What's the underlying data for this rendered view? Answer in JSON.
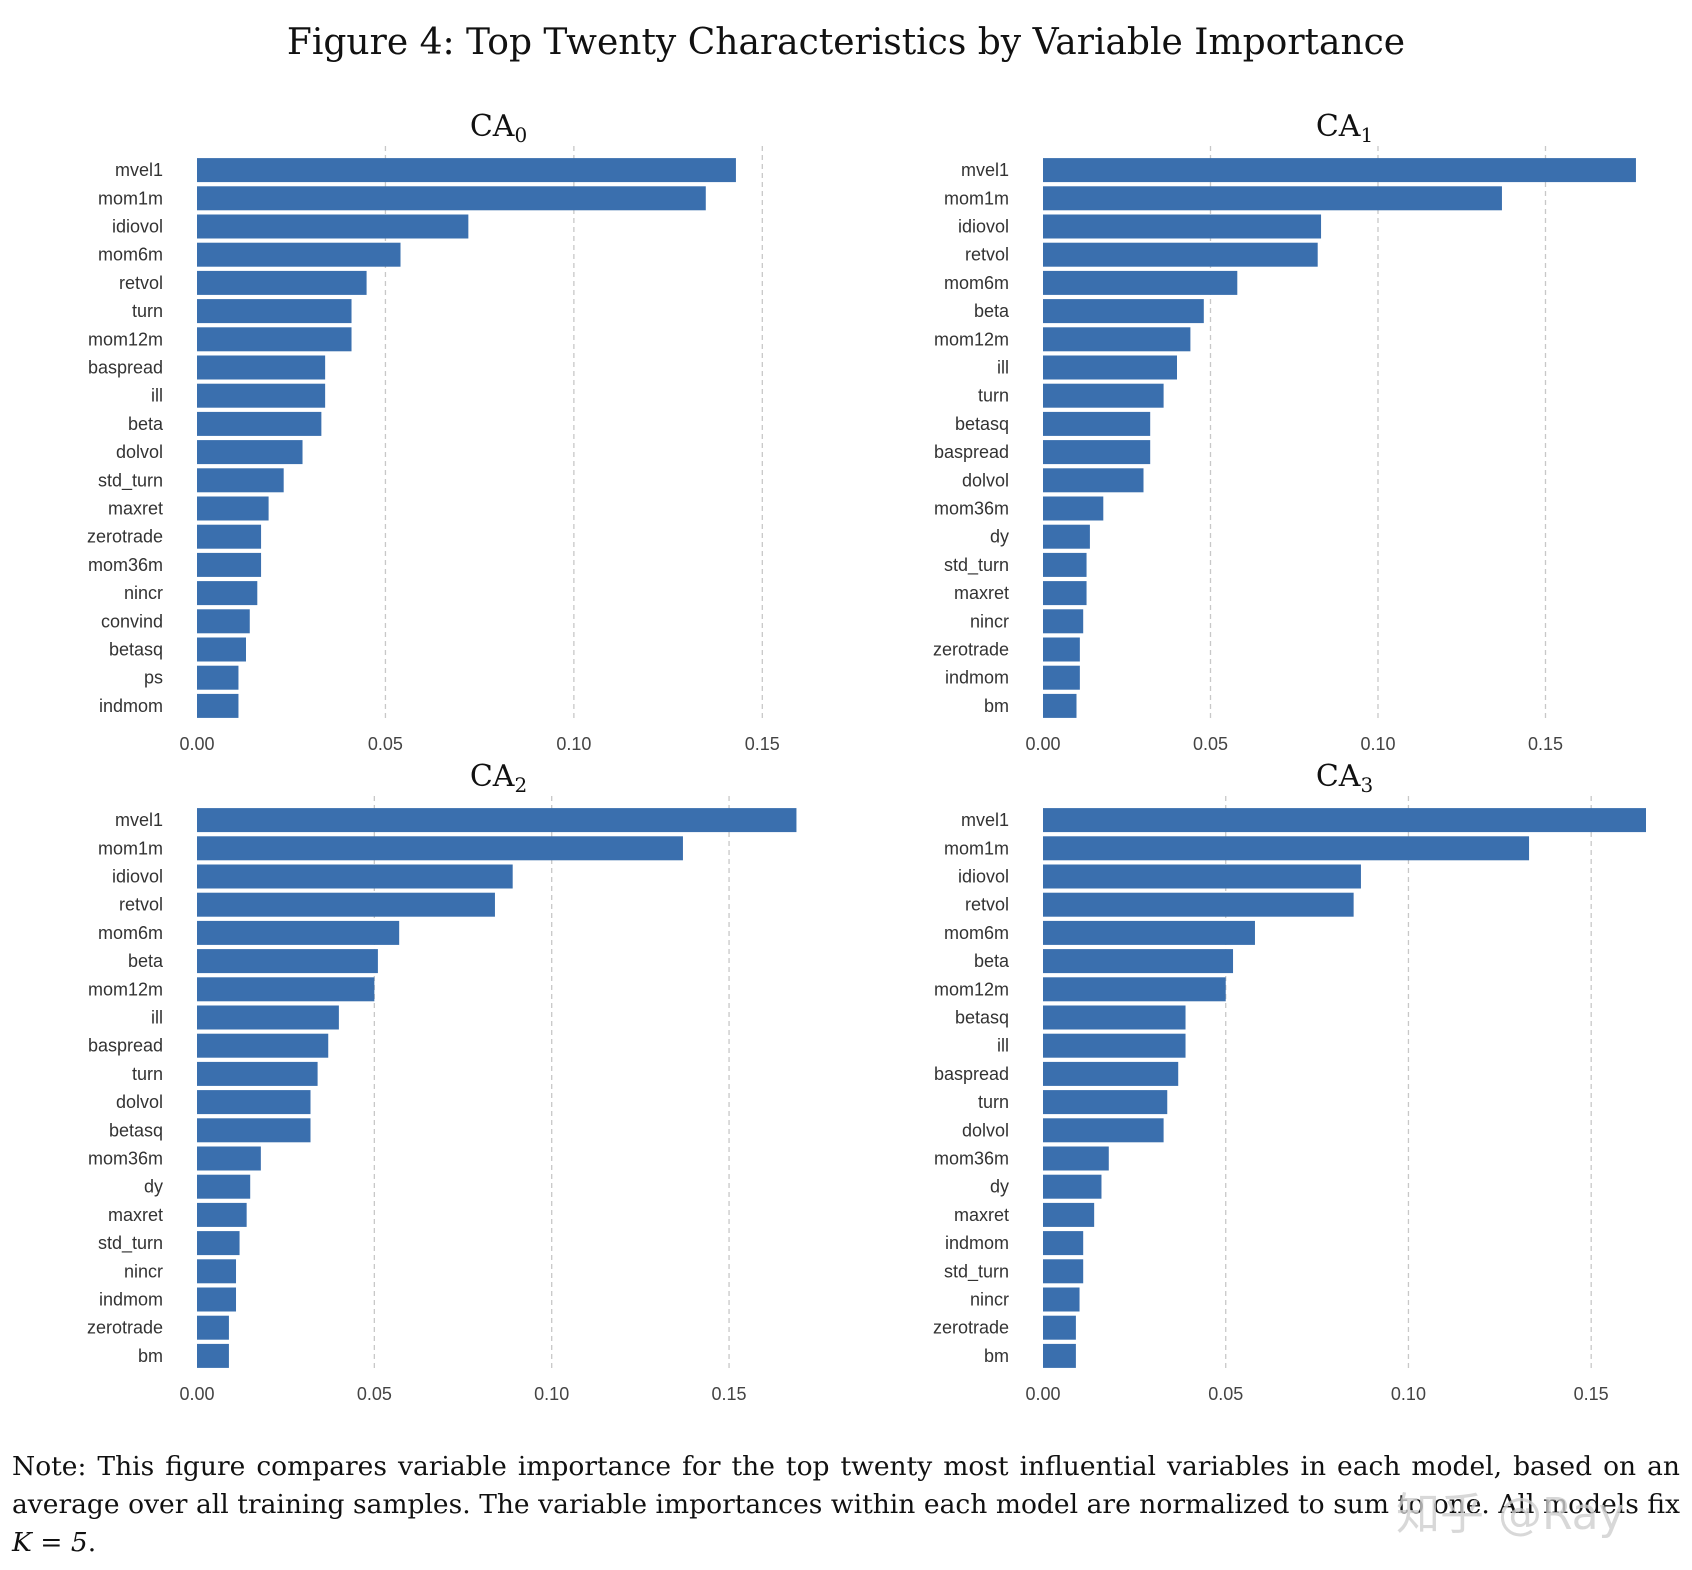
{
  "figure": {
    "title": "Figure 4: Top Twenty Characteristics by Variable Importance",
    "note_prefix": "Note: This figure compares variable importance for the top twenty most influential variables in each model, based on an average over all training samples. The variable importances within each model are normalized to sum to one. All models fix ",
    "note_math": "K = 5",
    "note_suffix": ".",
    "watermark": "知乎 @Ray"
  },
  "style": {
    "bar_color": "#3a6fae",
    "grid_color": "#c8c8c8"
  },
  "chart_data": [
    {
      "type": "bar",
      "orientation": "horizontal",
      "title": "CA",
      "title_sub": "0",
      "xlim": [
        0,
        0.16
      ],
      "xticks": [
        "0.00",
        "0.05",
        "0.10",
        "0.15"
      ],
      "categories": [
        "mvel1",
        "mom1m",
        "idiovol",
        "mom6m",
        "retvol",
        "turn",
        "mom12m",
        "baspread",
        "ill",
        "beta",
        "dolvol",
        "std_turn",
        "maxret",
        "zerotrade",
        "mom36m",
        "nincr",
        "convind",
        "betasq",
        "ps",
        "indmom"
      ],
      "values": [
        0.143,
        0.135,
        0.072,
        0.054,
        0.045,
        0.041,
        0.041,
        0.034,
        0.034,
        0.033,
        0.028,
        0.023,
        0.019,
        0.017,
        0.017,
        0.016,
        0.014,
        0.013,
        0.011,
        0.011
      ]
    },
    {
      "type": "bar",
      "orientation": "horizontal",
      "title": "CA",
      "title_sub": "1",
      "xlim": [
        0,
        0.18
      ],
      "xticks": [
        "0.00",
        "0.05",
        "0.10",
        "0.15"
      ],
      "categories": [
        "mvel1",
        "mom1m",
        "idiovol",
        "retvol",
        "mom6m",
        "beta",
        "mom12m",
        "ill",
        "turn",
        "betasq",
        "baspread",
        "dolvol",
        "mom36m",
        "dy",
        "std_turn",
        "maxret",
        "nincr",
        "zerotrade",
        "indmom",
        "bm"
      ],
      "values": [
        0.177,
        0.137,
        0.083,
        0.082,
        0.058,
        0.048,
        0.044,
        0.04,
        0.036,
        0.032,
        0.032,
        0.03,
        0.018,
        0.014,
        0.013,
        0.013,
        0.012,
        0.011,
        0.011,
        0.01
      ]
    },
    {
      "type": "bar",
      "orientation": "horizontal",
      "title": "CA",
      "title_sub": "2",
      "xlim": [
        0,
        0.17
      ],
      "xticks": [
        "0.00",
        "0.05",
        "0.10",
        "0.15"
      ],
      "categories": [
        "mvel1",
        "mom1m",
        "idiovol",
        "retvol",
        "mom6m",
        "beta",
        "mom12m",
        "ill",
        "baspread",
        "turn",
        "dolvol",
        "betasq",
        "mom36m",
        "dy",
        "maxret",
        "std_turn",
        "nincr",
        "indmom",
        "zerotrade",
        "bm"
      ],
      "values": [
        0.169,
        0.137,
        0.089,
        0.084,
        0.057,
        0.051,
        0.05,
        0.04,
        0.037,
        0.034,
        0.032,
        0.032,
        0.018,
        0.015,
        0.014,
        0.012,
        0.011,
        0.011,
        0.009,
        0.009
      ]
    },
    {
      "type": "bar",
      "orientation": "horizontal",
      "title": "CA",
      "title_sub": "3",
      "xlim": [
        0,
        0.165
      ],
      "xticks": [
        "0.00",
        "0.05",
        "0.10",
        "0.15"
      ],
      "categories": [
        "mvel1",
        "mom1m",
        "idiovol",
        "retvol",
        "mom6m",
        "beta",
        "mom12m",
        "betasq",
        "ill",
        "baspread",
        "turn",
        "dolvol",
        "mom36m",
        "dy",
        "maxret",
        "indmom",
        "std_turn",
        "nincr",
        "zerotrade",
        "bm"
      ],
      "values": [
        0.165,
        0.133,
        0.087,
        0.085,
        0.058,
        0.052,
        0.05,
        0.039,
        0.039,
        0.037,
        0.034,
        0.033,
        0.018,
        0.016,
        0.014,
        0.011,
        0.011,
        0.01,
        0.009,
        0.009
      ]
    }
  ]
}
